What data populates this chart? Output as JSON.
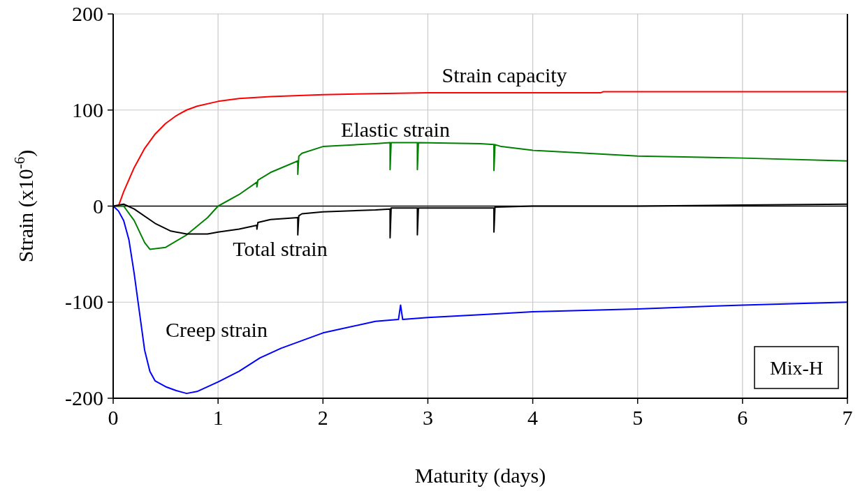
{
  "chart_data": {
    "type": "line",
    "xlabel": "Maturity (days)",
    "ylabel": "Strain (x10$^{-6}$)",
    "xlim": [
      0,
      7
    ],
    "xticks": [
      0,
      1,
      2,
      3,
      4,
      5,
      6,
      7
    ],
    "ylim": [
      -200,
      200
    ],
    "yticks": [
      -200,
      -100,
      0,
      100,
      200
    ],
    "grid": true,
    "marker": "none",
    "line_style": "solid",
    "ref_lines": [
      {
        "axis": "y",
        "value": 0,
        "color": "#000000"
      }
    ],
    "series": [
      {
        "name": "Strain capacity",
        "color": "#ff0000",
        "x": [
          0,
          0.05,
          0.1,
          0.2,
          0.3,
          0.4,
          0.5,
          0.6,
          0.7,
          0.8,
          1.0,
          1.2,
          1.5,
          2,
          3,
          4,
          4.65,
          4.67,
          7
        ],
        "values": [
          0,
          0,
          15,
          40,
          60,
          75,
          86,
          94,
          100,
          104,
          109,
          112,
          114,
          116,
          118,
          118,
          118,
          119,
          119
        ]
      },
      {
        "name": "Elastic strain",
        "color": "#008000",
        "x": [
          0,
          0.1,
          0.2,
          0.3,
          0.35,
          0.5,
          0.7,
          0.9,
          1.0,
          1.2,
          1.37,
          1.37,
          1.38,
          1.5,
          1.76,
          1.76,
          1.77,
          1.8,
          2,
          2.5,
          2.64,
          2.64,
          2.65,
          2.9,
          2.9,
          2.91,
          3.5,
          3.63,
          3.63,
          3.64,
          3.7,
          4,
          5,
          6,
          7
        ],
        "values": [
          0,
          0,
          -15,
          -38,
          -45,
          -43,
          -30,
          -12,
          0,
          12,
          25,
          20,
          27,
          35,
          47,
          33,
          52,
          55,
          62,
          65,
          66,
          38,
          66,
          66,
          38,
          66,
          65,
          64,
          37,
          64,
          62,
          58,
          52,
          50,
          47
        ]
      },
      {
        "name": "Total strain",
        "color": "#000000",
        "x": [
          0,
          0.1,
          0.2,
          0.4,
          0.55,
          0.7,
          0.9,
          1.0,
          1.2,
          1.37,
          1.37,
          1.38,
          1.5,
          1.76,
          1.76,
          1.77,
          1.8,
          2.0,
          2.5,
          2.64,
          2.64,
          2.65,
          2.9,
          2.9,
          2.91,
          3.63,
          3.63,
          3.64,
          4,
          5,
          6,
          7
        ],
        "values": [
          0,
          2,
          -3,
          -18,
          -26,
          -29,
          -29,
          -27,
          -24,
          -20,
          -24,
          -17,
          -14,
          -12,
          -30,
          -10,
          -8,
          -6,
          -4,
          -3,
          -33,
          -2,
          -2,
          -30,
          -2,
          -2,
          -27,
          -1,
          0,
          0,
          1,
          2
        ]
      },
      {
        "name": "Creep strain",
        "color": "#0000ff",
        "x": [
          0,
          0.05,
          0.1,
          0.15,
          0.2,
          0.25,
          0.3,
          0.35,
          0.4,
          0.5,
          0.6,
          0.7,
          0.8,
          1.0,
          1.2,
          1.4,
          1.6,
          1.8,
          2.0,
          2.5,
          2.72,
          2.74,
          2.76,
          3,
          3.5,
          4,
          5,
          6,
          7
        ],
        "values": [
          0,
          -5,
          -15,
          -35,
          -70,
          -110,
          -150,
          -172,
          -182,
          -188,
          -192,
          -195,
          -193,
          -183,
          -172,
          -158,
          -148,
          -140,
          -132,
          -120,
          -118,
          -103,
          -118,
          -116,
          -113,
          -110,
          -107,
          -103,
          -100
        ]
      }
    ],
    "annotations": [
      "Mix-H"
    ]
  }
}
